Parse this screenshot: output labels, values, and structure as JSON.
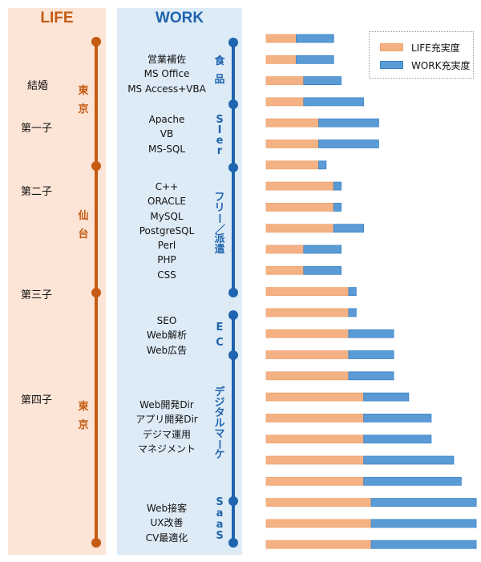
{
  "life": {
    "title": "LIFE",
    "events": [
      {
        "label": "結婚"
      },
      {
        "label": "第一子"
      },
      {
        "label": "第二子"
      },
      {
        "label": "第三子"
      },
      {
        "label": "第四子"
      }
    ],
    "locations": [
      {
        "label": "東京"
      },
      {
        "label": "仙台"
      },
      {
        "label": "東京"
      }
    ]
  },
  "work": {
    "title": "WORK",
    "periods": [
      {
        "industry": "食品",
        "skills": [
          "営業補佐",
          "MS Office",
          "MS Access+VBA"
        ]
      },
      {
        "industry": "SIer",
        "skills": [
          "Apache",
          "VB",
          "MS-SQL"
        ]
      },
      {
        "industry": "フリー／派遣",
        "skills": [
          "C++",
          "ORACLE",
          "MySQL",
          "PostgreSQL",
          "Perl",
          "PHP",
          "CSS"
        ]
      },
      {
        "industry": "EC",
        "skills": [
          "SEO",
          "Web解析",
          "Web広告"
        ]
      },
      {
        "industry": "デジタルマーケ",
        "skills": [
          "Web開発Dir",
          "アプリ開発Dir",
          "デジマ運用",
          "マネジメント"
        ]
      },
      {
        "industry": "SaaS",
        "skills": [
          "Web接客",
          "UX改善",
          "CV最適化"
        ]
      }
    ]
  },
  "colors": {
    "life": "#c55a11",
    "work": "#1f64ae",
    "life_bar": "#f4b183",
    "work_bar": "#5b9bd5"
  },
  "chart_data": {
    "type": "bar",
    "orientation": "horizontal-stacked",
    "title": "",
    "xlabel": "",
    "ylabel": "",
    "grid": false,
    "legend_position": "top-right",
    "xlim": [
      0,
      28
    ],
    "categories": [
      "1",
      "2",
      "3",
      "4",
      "5",
      "6",
      "7",
      "8",
      "9",
      "10",
      "11",
      "12",
      "13",
      "14",
      "15",
      "16",
      "17",
      "18",
      "19",
      "20",
      "21",
      "22",
      "23",
      "24",
      "25"
    ],
    "series": [
      {
        "name": "LIFE充実度",
        "color": "#f4b183",
        "values": [
          4,
          4,
          5,
          5,
          7,
          7,
          7,
          9,
          9,
          9,
          5,
          5,
          11,
          11,
          11,
          11,
          11,
          13,
          13,
          13,
          13,
          13,
          14,
          14,
          14
        ]
      },
      {
        "name": "WORK充実度",
        "color": "#5b9bd5",
        "values": [
          5,
          5,
          5,
          8,
          8,
          8,
          1,
          1,
          1,
          4,
          5,
          5,
          1,
          1,
          6,
          6,
          6,
          6,
          9,
          9,
          12,
          13,
          14,
          14,
          14
        ]
      }
    ]
  }
}
